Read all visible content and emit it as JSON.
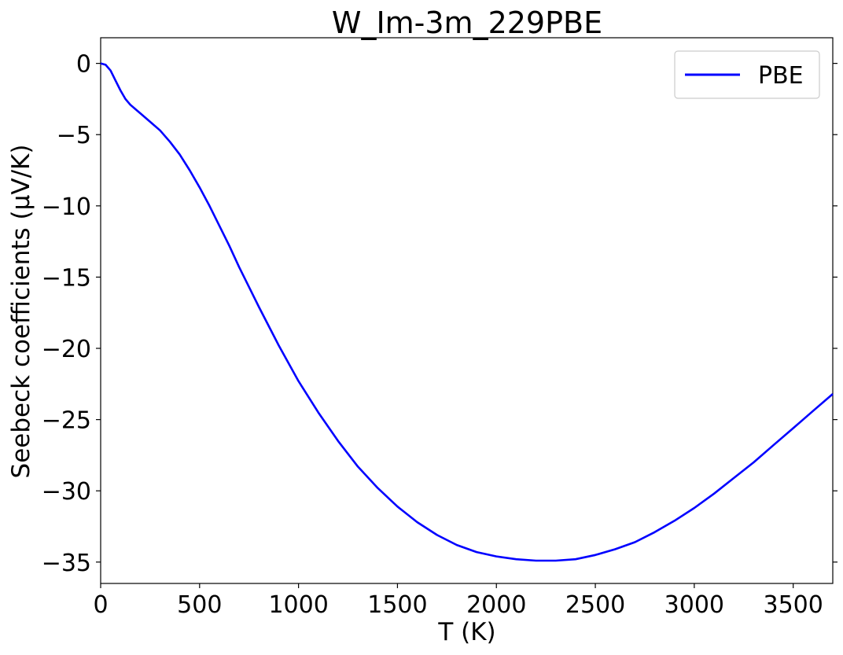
{
  "chart_data": {
    "type": "line",
    "title": "W_Im-3m_229PBE",
    "xlabel": "T (K)",
    "ylabel": "Seebeck coefficients (µV/K)",
    "xlim": [
      0,
      3700
    ],
    "ylim": [
      -36.5,
      1.8
    ],
    "xticks": [
      0,
      500,
      1000,
      1500,
      2000,
      2500,
      3000,
      3500
    ],
    "xtick_labels": [
      "0",
      "500",
      "1000",
      "1500",
      "2000",
      "2500",
      "3000",
      "3500"
    ],
    "yticks": [
      0,
      -5,
      -10,
      -15,
      -20,
      -25,
      -30,
      -35
    ],
    "ytick_labels": [
      "0",
      "−5",
      "−10",
      "−15",
      "−20",
      "−25",
      "−30",
      "−35"
    ],
    "grid": false,
    "legend": {
      "position": "top-right",
      "entries": [
        "PBE"
      ]
    },
    "series": [
      {
        "name": "PBE",
        "color": "#0000ff",
        "x": [
          0,
          25,
          50,
          75,
          100,
          125,
          150,
          175,
          200,
          250,
          300,
          350,
          400,
          450,
          500,
          550,
          600,
          650,
          700,
          750,
          800,
          900,
          1000,
          1100,
          1200,
          1300,
          1400,
          1500,
          1600,
          1700,
          1800,
          1900,
          2000,
          2100,
          2200,
          2300,
          2400,
          2500,
          2600,
          2700,
          2800,
          2900,
          3000,
          3100,
          3200,
          3300,
          3400,
          3500,
          3600,
          3700
        ],
        "y": [
          0,
          -0.1,
          -0.5,
          -1.2,
          -1.9,
          -2.5,
          -2.9,
          -3.2,
          -3.5,
          -4.1,
          -4.7,
          -5.5,
          -6.4,
          -7.5,
          -8.7,
          -10.0,
          -11.4,
          -12.8,
          -14.3,
          -15.7,
          -17.1,
          -19.8,
          -22.3,
          -24.5,
          -26.5,
          -28.3,
          -29.8,
          -31.1,
          -32.2,
          -33.1,
          -33.8,
          -34.3,
          -34.6,
          -34.8,
          -34.9,
          -34.9,
          -34.8,
          -34.5,
          -34.1,
          -33.6,
          -32.9,
          -32.1,
          -31.2,
          -30.2,
          -29.1,
          -28.0,
          -26.8,
          -25.6,
          -24.4,
          -23.2
        ]
      }
    ]
  }
}
